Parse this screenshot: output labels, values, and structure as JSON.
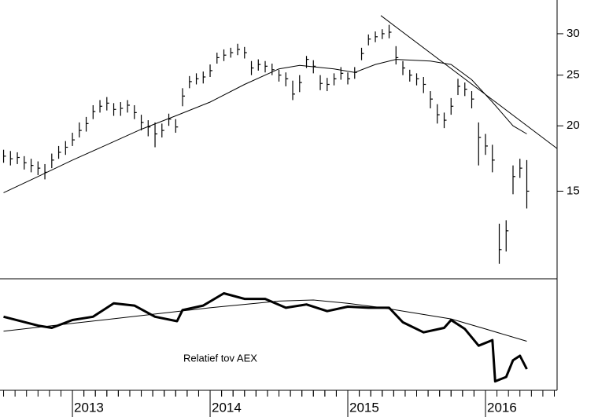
{
  "chart_data": [
    {
      "type": "ohlc",
      "log_scale": true,
      "color": "#000000",
      "xlim": [
        2012.474,
        2016.52
      ],
      "ylim": [
        10.2,
        34.8
      ],
      "yticks": [
        15,
        20,
        25,
        30
      ],
      "x": [
        2012.5,
        2012.55,
        2012.6,
        2012.65,
        2012.7,
        2012.75,
        2012.8,
        2012.85,
        2012.9,
        2012.95,
        2013.0,
        2013.05,
        2013.1,
        2013.15,
        2013.2,
        2013.25,
        2013.3,
        2013.35,
        2013.4,
        2013.45,
        2013.5,
        2013.55,
        2013.6,
        2013.65,
        2013.7,
        2013.75,
        2013.8,
        2013.85,
        2013.9,
        2013.95,
        2014.0,
        2014.05,
        2014.1,
        2014.15,
        2014.2,
        2014.25,
        2014.3,
        2014.35,
        2014.4,
        2014.45,
        2014.5,
        2014.55,
        2014.6,
        2014.65,
        2014.7,
        2014.75,
        2014.8,
        2014.85,
        2014.9,
        2014.95,
        2015.0,
        2015.05,
        2015.1,
        2015.15,
        2015.2,
        2015.25,
        2015.3,
        2015.35,
        2015.4,
        2015.45,
        2015.5,
        2015.55,
        2015.6,
        2015.65,
        2015.7,
        2015.75,
        2015.8,
        2015.85,
        2015.9,
        2015.95,
        2016.0,
        2016.05,
        2016.1,
        2016.15,
        2016.2,
        2016.25,
        2016.3
      ],
      "high": [
        18,
        17.9,
        17.8,
        17.5,
        17.3,
        17.1,
        16.9,
        17.7,
        18.3,
        18.7,
        19.4,
        20.3,
        20.8,
        21.9,
        22.4,
        22.7,
        22.1,
        22.2,
        22.4,
        21.9,
        21,
        20.5,
        20.3,
        20.2,
        21.1,
        20.6,
        23.6,
        24.9,
        25.2,
        25.4,
        26.2,
        27.6,
        28,
        28.2,
        28.7,
        28.3,
        26.6,
        26.8,
        26.6,
        26.3,
        25.6,
        25.3,
        24.4,
        25,
        27.2,
        26.7,
        25,
        24.7,
        25.2,
        25.9,
        25.3,
        25.9,
        28.2,
        29.9,
        30.3,
        30.6,
        31.2,
        28.4,
        26.6,
        25.6,
        25.2,
        24.8,
        23.3,
        22,
        21.2,
        22.6,
        24.6,
        24.2,
        23.3,
        20.3,
        19.3,
        18.4,
        13,
        13.2,
        16.8,
        17.3,
        17.2
      ],
      "low": [
        17,
        16.8,
        16.9,
        16.5,
        16.3,
        16.1,
        15.8,
        16.6,
        17.3,
        17.6,
        18.3,
        19,
        19.5,
        20.6,
        21.2,
        21.4,
        20.9,
        20.9,
        21.2,
        20.6,
        19.6,
        19.1,
        18.2,
        19,
        20,
        19.4,
        21.8,
        23.6,
        24,
        24.1,
        24.8,
        26.3,
        26.6,
        27,
        27.3,
        26.9,
        25,
        25.5,
        25.3,
        25,
        24.3,
        23.8,
        22.4,
        23.2,
        25.8,
        25.2,
        23.4,
        23.3,
        23.9,
        24.5,
        24,
        24.6,
        26.7,
        28.5,
        28.9,
        29.3,
        29.4,
        26.2,
        25,
        24.3,
        23.9,
        23.1,
        21.6,
        20.2,
        19.8,
        21,
        22.9,
        22.8,
        21.6,
        16.8,
        17.6,
        16.3,
        10.9,
        11.5,
        14.8,
        15.9,
        13.9
      ],
      "close": [
        17.5,
        17.3,
        17.4,
        17,
        16.8,
        16.6,
        16.3,
        17.2,
        17.8,
        18.2,
        18.8,
        19.6,
        20.2,
        21.3,
        21.8,
        22.1,
        21.5,
        21.6,
        21.9,
        21.2,
        20.3,
        19.9,
        19.3,
        19.6,
        20.6,
        19.9,
        22.8,
        24.3,
        24.6,
        24.8,
        25.5,
        27,
        27.3,
        27.6,
        28,
        27.6,
        25.8,
        26.2,
        26,
        25.6,
        25,
        24.6,
        23,
        24.2,
        26.8,
        26,
        24.1,
        24,
        24.6,
        25.2,
        24.6,
        25.3,
        27.5,
        29.3,
        29.6,
        30,
        30.2,
        27,
        25.8,
        25,
        24.6,
        24,
        22.5,
        21,
        20.5,
        21.8,
        23.8,
        23.5,
        22.5,
        19,
        18.3,
        17.2,
        11.6,
        12.6,
        16,
        16.6,
        15
      ],
      "moving_average": {
        "x": [
          2012.5,
          2012.75,
          2013.0,
          2013.25,
          2013.5,
          2013.75,
          2014.0,
          2014.25,
          2014.5,
          2014.65,
          2014.9,
          2015.05,
          2015.2,
          2015.35,
          2015.6,
          2015.75,
          2015.9,
          2016.05,
          2016.2,
          2016.3
        ],
        "values": [
          14.9,
          16.0,
          17.2,
          18.4,
          19.7,
          20.9,
          22.2,
          24.0,
          25.7,
          26.1,
          25.7,
          25.3,
          26.2,
          26.8,
          26.6,
          26.2,
          24.5,
          22.2,
          20.0,
          19.3
        ]
      },
      "trendline": {
        "x": [
          2015.24,
          2016.52
        ],
        "values": [
          32.5,
          18.1
        ]
      }
    },
    {
      "type": "line",
      "annotation": "Relatief tov AEX",
      "xlim": [
        2012.474,
        2016.52
      ],
      "xticks": [
        2013,
        2014,
        2015,
        2016
      ],
      "ylim": [
        0,
        100
      ],
      "series": [
        {
          "color": "#000000",
          "width": 3,
          "x": [
            2012.5,
            2012.75,
            2012.85,
            2013.0,
            2013.15,
            2013.3,
            2013.45,
            2013.6,
            2013.76,
            2013.8,
            2013.95,
            2014.1,
            2014.25,
            2014.4,
            2014.55,
            2014.7,
            2014.85,
            2015.0,
            2015.15,
            2015.3,
            2015.4,
            2015.55,
            2015.7,
            2015.75,
            2015.85,
            2015.95,
            2016.05,
            2016.07,
            2016.15,
            2016.2,
            2016.25,
            2016.3
          ],
          "values": [
            66,
            58,
            56,
            63,
            66,
            78,
            76,
            66,
            62,
            72,
            76,
            87,
            82,
            82,
            74,
            77,
            71,
            75,
            74,
            74,
            61,
            52,
            56,
            63,
            55,
            40,
            45,
            8,
            12,
            27,
            31,
            19
          ]
        },
        {
          "color": "#000000",
          "width": 1,
          "x": [
            2012.5,
            2013.0,
            2013.5,
            2014.0,
            2014.5,
            2014.75,
            2015.0,
            2015.25,
            2015.5,
            2015.75,
            2016.0,
            2016.3
          ],
          "values": [
            53,
            60,
            67,
            74,
            80,
            81,
            78,
            74,
            69,
            64,
            55,
            44
          ]
        }
      ]
    }
  ]
}
